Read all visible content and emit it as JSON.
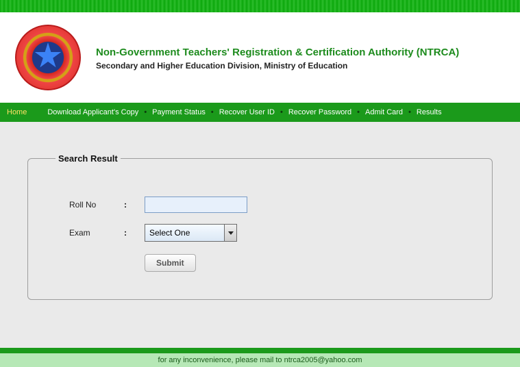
{
  "colors": {
    "brand_green": "#1b9a1b",
    "title_green": "#1d8b1d",
    "active_nav": "#ffe066",
    "content_bg": "#eaeaea",
    "footer_bg": "#b6e8b6",
    "input_bg": "#e7f0fb",
    "input_border": "#7a9cc6"
  },
  "header": {
    "title": "Non-Government Teachers' Registration & Certification Authority (NTRCA)",
    "subtitle": "Secondary and Higher Education Division, Ministry of Education"
  },
  "nav": {
    "items": [
      {
        "label": "Home",
        "active": true
      },
      {
        "label": "Download Applicant's Copy",
        "active": false
      },
      {
        "label": "Payment Status",
        "active": false
      },
      {
        "label": "Recover User ID",
        "active": false
      },
      {
        "label": "Recover Password",
        "active": false
      },
      {
        "label": "Admit Card",
        "active": false
      },
      {
        "label": "Results",
        "active": false
      }
    ]
  },
  "form": {
    "legend": "Search Result",
    "roll_label": "Roll No",
    "roll_value": "",
    "exam_label": "Exam",
    "exam_selected": "Select One",
    "submit_label": "Submit"
  },
  "footer": {
    "text_prefix": "for any inconvenience, please mail to ",
    "email": "ntrca2005@yahoo.com"
  }
}
